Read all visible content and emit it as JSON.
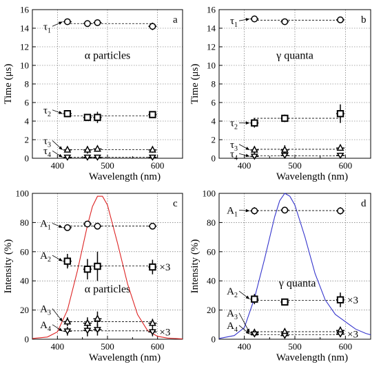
{
  "chart_data": [
    {
      "type": "scatter",
      "panel_letter": "a",
      "annotation": "α particles",
      "xlabel": "Wavelength (nm)",
      "ylabel": "Time (μs)",
      "xlim": [
        350,
        650
      ],
      "ylim": [
        0,
        16
      ],
      "xticks": [
        400,
        500,
        600
      ],
      "yticks": [
        0,
        2,
        4,
        6,
        8,
        10,
        12,
        14,
        16
      ],
      "grid": true,
      "series": [
        {
          "name": "τ1",
          "marker": "circle",
          "x": [
            420,
            460,
            480,
            590
          ],
          "y": [
            14.7,
            14.5,
            14.6,
            14.2
          ],
          "yerr": [
            0.15,
            0.15,
            0.3,
            0.4
          ]
        },
        {
          "name": "τ2",
          "marker": "square",
          "x": [
            420,
            460,
            480,
            590
          ],
          "y": [
            4.8,
            4.4,
            4.4,
            4.7
          ],
          "yerr": [
            0.3,
            0.3,
            0.6,
            0.2
          ]
        },
        {
          "name": "τ3",
          "marker": "triangle-up",
          "x": [
            420,
            460,
            480,
            590
          ],
          "y": [
            0.9,
            0.9,
            1.0,
            0.9
          ],
          "yerr": [
            0.2,
            0.4,
            0.3,
            0.3
          ]
        },
        {
          "name": "τ4",
          "marker": "triangle-down",
          "x": [
            420,
            460,
            480,
            590
          ],
          "y": [
            0.1,
            0.1,
            0.1,
            0.1
          ],
          "yerr": [
            0.2,
            0.2,
            0.2,
            0.2
          ]
        }
      ]
    },
    {
      "type": "scatter",
      "panel_letter": "b",
      "annotation": "γ quanta",
      "xlabel": "Wavelength (nm)",
      "ylabel": "Time (μs)",
      "xlim": [
        350,
        650
      ],
      "ylim": [
        0,
        16
      ],
      "xticks": [
        400,
        500,
        600
      ],
      "yticks": [
        0,
        2,
        4,
        6,
        8,
        10,
        12,
        14,
        16
      ],
      "grid": true,
      "series": [
        {
          "name": "τ1",
          "marker": "circle",
          "x": [
            420,
            480,
            590
          ],
          "y": [
            15.0,
            14.7,
            14.9
          ],
          "yerr": [
            0.1,
            0.1,
            0.1
          ]
        },
        {
          "name": "τ2",
          "marker": "square",
          "x": [
            420,
            480,
            590
          ],
          "y": [
            3.8,
            4.3,
            4.8
          ],
          "yerr": [
            0.5,
            0.4,
            1.0
          ]
        },
        {
          "name": "τ3",
          "marker": "triangle-up",
          "x": [
            420,
            480,
            590
          ],
          "y": [
            0.9,
            0.9,
            1.1
          ],
          "yerr": [
            0.4,
            0.5,
            0.3
          ]
        },
        {
          "name": "τ4",
          "marker": "triangle-down",
          "x": [
            420,
            480,
            590
          ],
          "y": [
            0.2,
            0.3,
            0.3
          ],
          "yerr": [
            0.3,
            0.3,
            0.3
          ]
        }
      ]
    },
    {
      "type": "scatter",
      "panel_letter": "c",
      "annotation": "α particles",
      "xlabel": "Wavelength (nm)",
      "ylabel": "Intensity (%)",
      "xlim": [
        350,
        650
      ],
      "ylim": [
        0,
        100
      ],
      "xticks": [
        400,
        500,
        600
      ],
      "yticks": [
        0,
        20,
        40,
        60,
        80,
        100
      ],
      "grid": true,
      "series": [
        {
          "name": "A1",
          "marker": "circle",
          "x": [
            420,
            460,
            480,
            590
          ],
          "y": [
            76.5,
            79.0,
            77.5,
            77.5
          ],
          "yerr": [
            1.0,
            1.0,
            1.5,
            1.5
          ]
        },
        {
          "name": "A2",
          "marker": "square",
          "x": [
            420,
            460,
            480,
            590
          ],
          "y": [
            53.5,
            48.0,
            50.0,
            49.5
          ],
          "yerr": [
            5,
            7,
            10,
            5
          ],
          "note": "×3"
        },
        {
          "name": "A3",
          "marker": "triangle-up",
          "x": [
            420,
            460,
            480,
            590
          ],
          "y": [
            12.0,
            11.0,
            14.0,
            11.0
          ],
          "yerr": [
            3,
            4,
            5,
            3
          ]
        },
        {
          "name": "A4",
          "marker": "triangle-down",
          "x": [
            420,
            460,
            480,
            590
          ],
          "y": [
            5.5,
            6.0,
            6.5,
            5.0
          ],
          "yerr": [
            3,
            4,
            4,
            3
          ],
          "note": "×3"
        }
      ],
      "spectrum": {
        "color": "#dd2222",
        "x": [
          350,
          380,
          400,
          420,
          440,
          460,
          470,
          480,
          490,
          500,
          520,
          540,
          560,
          580,
          600,
          620,
          650
        ],
        "y": [
          0.5,
          1.5,
          5,
          20,
          47,
          78,
          91,
          98,
          98,
          92,
          66,
          38,
          17,
          6,
          2,
          0.8,
          0.2
        ]
      }
    },
    {
      "type": "scatter",
      "panel_letter": "d",
      "annotation": "γ quanta",
      "xlabel": "Wavelength (nm)",
      "ylabel": "Intensity (%)",
      "xlim": [
        350,
        650
      ],
      "ylim": [
        0,
        100
      ],
      "xticks": [
        400,
        500,
        600
      ],
      "yticks": [
        0,
        20,
        40,
        60,
        80,
        100
      ],
      "grid": true,
      "series": [
        {
          "name": "A1",
          "marker": "circle",
          "x": [
            420,
            480,
            590
          ],
          "y": [
            88.0,
            88.5,
            88.0
          ],
          "yerr": [
            2.5,
            1.0,
            2.5
          ]
        },
        {
          "name": "A2",
          "marker": "square",
          "x": [
            420,
            480,
            590
          ],
          "y": [
            27.5,
            25.5,
            27.0
          ],
          "yerr": [
            3.5,
            1.5,
            5.0
          ],
          "note": "×3"
        },
        {
          "name": "A3",
          "marker": "triangle-up",
          "x": [
            420,
            480,
            590
          ],
          "y": [
            4.5,
            5.0,
            6.0
          ],
          "yerr": [
            2.0,
            2.5,
            2.5
          ]
        },
        {
          "name": "A4",
          "marker": "triangle-down",
          "x": [
            420,
            480,
            590
          ],
          "y": [
            3.5,
            2.5,
            3.5
          ],
          "yerr": [
            1.5,
            1.5,
            2.0
          ],
          "note": "×3"
        }
      ],
      "spectrum": {
        "color": "#3333cc",
        "x": [
          350,
          380,
          400,
          420,
          440,
          460,
          470,
          480,
          490,
          500,
          520,
          540,
          560,
          580,
          600,
          620,
          640,
          650
        ],
        "y": [
          0.5,
          2.5,
          8,
          28,
          55,
          84,
          95,
          100,
          98,
          92,
          70,
          45,
          27,
          17,
          12,
          7,
          4,
          3
        ]
      }
    }
  ]
}
